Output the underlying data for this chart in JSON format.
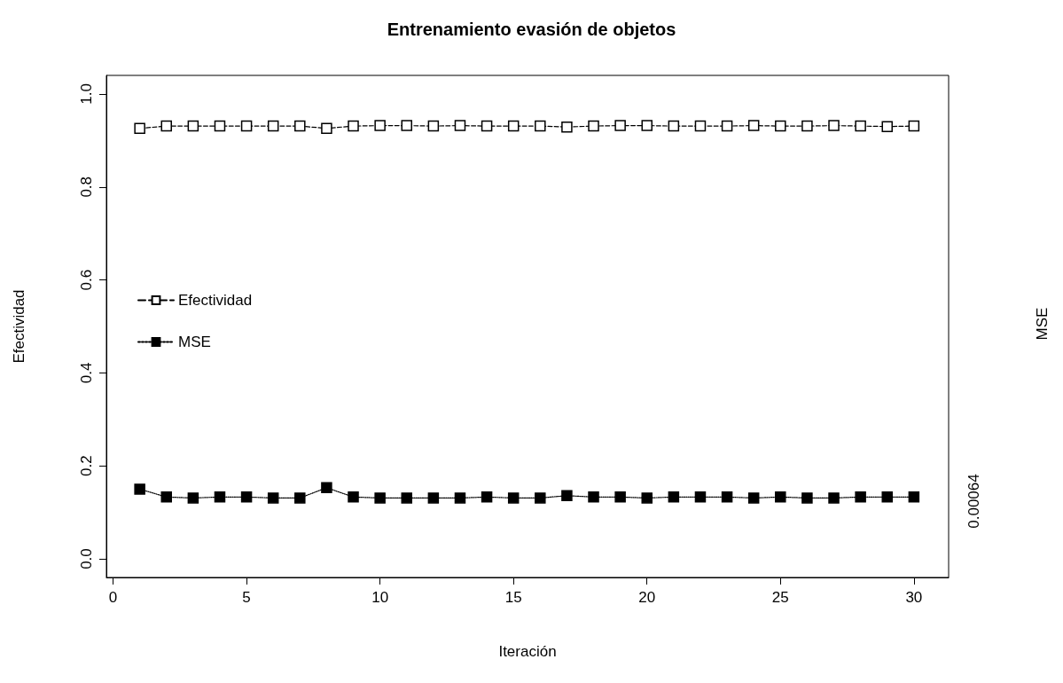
{
  "chart_data": {
    "type": "line",
    "title": "Entrenamiento evasión de objetos",
    "xlabel": "Iteración",
    "ylabel": "Efectividad",
    "x": [
      1,
      2,
      3,
      4,
      5,
      6,
      7,
      8,
      9,
      10,
      11,
      12,
      13,
      14,
      15,
      16,
      17,
      18,
      19,
      20,
      21,
      22,
      23,
      24,
      25,
      26,
      27,
      28,
      29,
      30
    ],
    "series": [
      {
        "name": "Efectividad",
        "color": "#000000",
        "marker": "square",
        "line_style": "dashed",
        "values": [
          0.926,
          0.931,
          0.931,
          0.931,
          0.931,
          0.931,
          0.931,
          0.926,
          0.931,
          0.932,
          0.932,
          0.931,
          0.932,
          0.931,
          0.931,
          0.931,
          0.929,
          0.931,
          0.932,
          0.932,
          0.931,
          0.931,
          0.931,
          0.932,
          0.931,
          0.931,
          0.932,
          0.931,
          0.93,
          0.931
        ]
      },
      {
        "name": "MSE",
        "color": "#000000",
        "marker": "square",
        "line_style": "dotted",
        "values": [
          0.15,
          0.133,
          0.131,
          0.133,
          0.133,
          0.131,
          0.131,
          0.153,
          0.133,
          0.131,
          0.131,
          0.131,
          0.131,
          0.133,
          0.131,
          0.131,
          0.136,
          0.133,
          0.133,
          0.131,
          0.133,
          0.133,
          0.133,
          0.131,
          0.133,
          0.131,
          0.131,
          0.133,
          0.133,
          0.133
        ]
      }
    ],
    "xlim": [
      -0.25,
      31.3
    ],
    "xticks": [
      0,
      5,
      10,
      15,
      20,
      25,
      30
    ],
    "ylim": [
      -0.04,
      1.04
    ],
    "yticks": [
      {
        "value": 0,
        "label": "0.0"
      },
      {
        "value": 0.2,
        "label": "0.2"
      },
      {
        "value": 0.4,
        "label": "0.4"
      },
      {
        "value": 0.6,
        "label": "0.6"
      },
      {
        "value": 0.8,
        "label": "0.8"
      },
      {
        "value": 1,
        "label": "1.0"
      }
    ],
    "annotations": [
      "MSE",
      "0.00064"
    ],
    "grid": false,
    "legend": "left"
  }
}
